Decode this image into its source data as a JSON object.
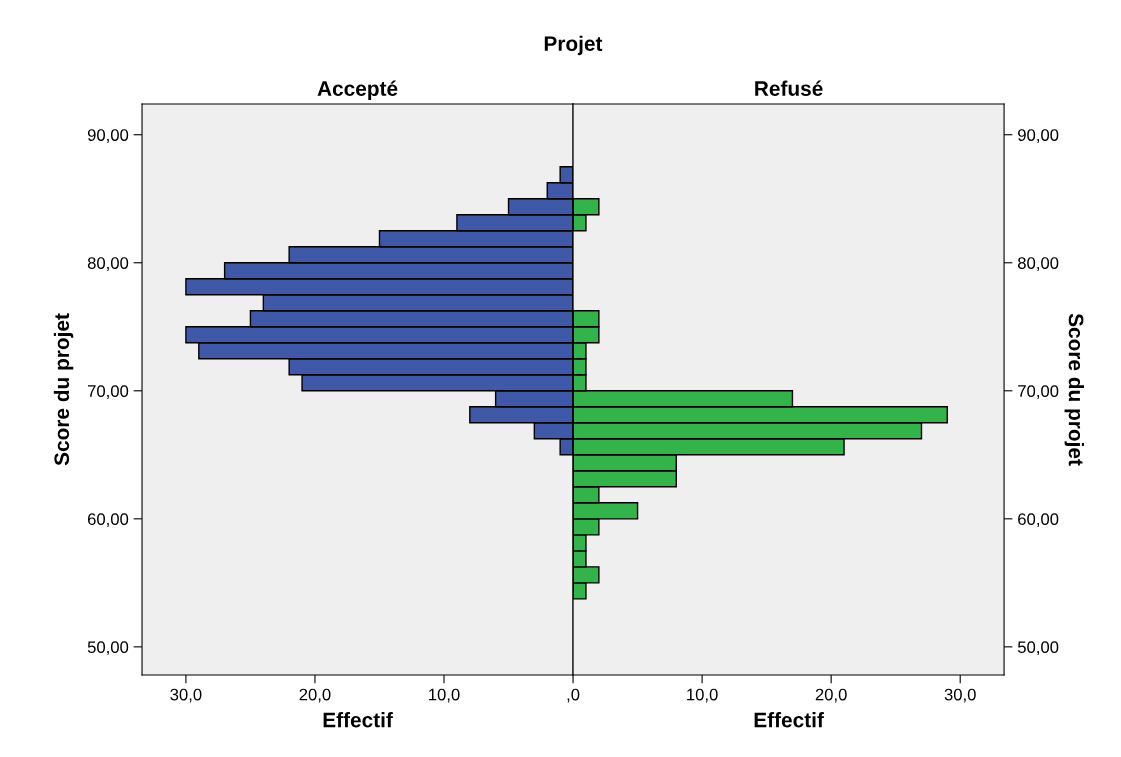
{
  "chart_data": [
    {
      "type": "histogram",
      "orientation": "horizontal",
      "title": "Accepté",
      "annotations": [
        "Projet"
      ],
      "xlabel": "Effectif",
      "ylabel": "Score du projet",
      "bins": [
        53.75,
        55,
        56.25,
        57.5,
        58.75,
        60,
        61.25,
        62.5,
        63.75,
        65,
        66.25,
        67.5,
        68.75,
        70,
        71.25,
        72.5,
        73.75,
        75,
        76.25,
        77.5,
        78.75,
        80,
        81.25,
        82.5,
        83.75,
        85,
        86.25,
        87.5
      ],
      "values": [
        null,
        null,
        null,
        null,
        null,
        null,
        null,
        null,
        null,
        1,
        3,
        8,
        6,
        21,
        22,
        29,
        30,
        25,
        24,
        30,
        27,
        22,
        15,
        9,
        5,
        2,
        1
      ],
      "color": "#3f58a8",
      "xlim": [
        33.4,
        0
      ],
      "xticks": [
        {
          "value": 30,
          "label": "30,0"
        },
        {
          "value": 20,
          "label": "20,0"
        },
        {
          "value": 10,
          "label": "10,0"
        },
        {
          "value": 0,
          "label": ",0"
        }
      ],
      "ylim": [
        47.8,
        92.4
      ],
      "yticks": [
        {
          "value": 50,
          "label": "50,00"
        },
        {
          "value": 60,
          "label": "60,00"
        },
        {
          "value": 70,
          "label": "70,00"
        },
        {
          "value": 80,
          "label": "80,00"
        },
        {
          "value": 90,
          "label": "90,00"
        }
      ],
      "grid": false
    },
    {
      "type": "histogram",
      "orientation": "horizontal",
      "title": "Refusé",
      "xlabel": "Effectif",
      "ylabel": "Score du projet",
      "bins": [
        53.75,
        55,
        56.25,
        57.5,
        58.75,
        60,
        61.25,
        62.5,
        63.75,
        65,
        66.25,
        67.5,
        68.75,
        70,
        71.25,
        72.5,
        73.75,
        75,
        76.25,
        77.5,
        78.75,
        80,
        81.25,
        82.5,
        83.75,
        85,
        86.25,
        87.5
      ],
      "values": [
        1,
        2,
        1,
        1,
        2,
        5,
        2,
        8,
        8,
        21,
        27,
        29,
        17,
        1,
        1,
        1,
        2,
        2,
        null,
        null,
        null,
        null,
        null,
        1,
        2,
        null,
        null
      ],
      "color": "#32b44a",
      "xlim": [
        0,
        33.4
      ],
      "xticks": [
        {
          "value": 10,
          "label": "10,0"
        },
        {
          "value": 20,
          "label": "20,0"
        },
        {
          "value": 30,
          "label": "30,0"
        }
      ],
      "ylim": [
        47.8,
        92.4
      ],
      "yticks": [
        {
          "value": 50,
          "label": "50,00"
        },
        {
          "value": 60,
          "label": "60,00"
        },
        {
          "value": 70,
          "label": "70,00"
        },
        {
          "value": 80,
          "label": "80,00"
        },
        {
          "value": 90,
          "label": "90,00"
        }
      ],
      "grid": false
    }
  ]
}
